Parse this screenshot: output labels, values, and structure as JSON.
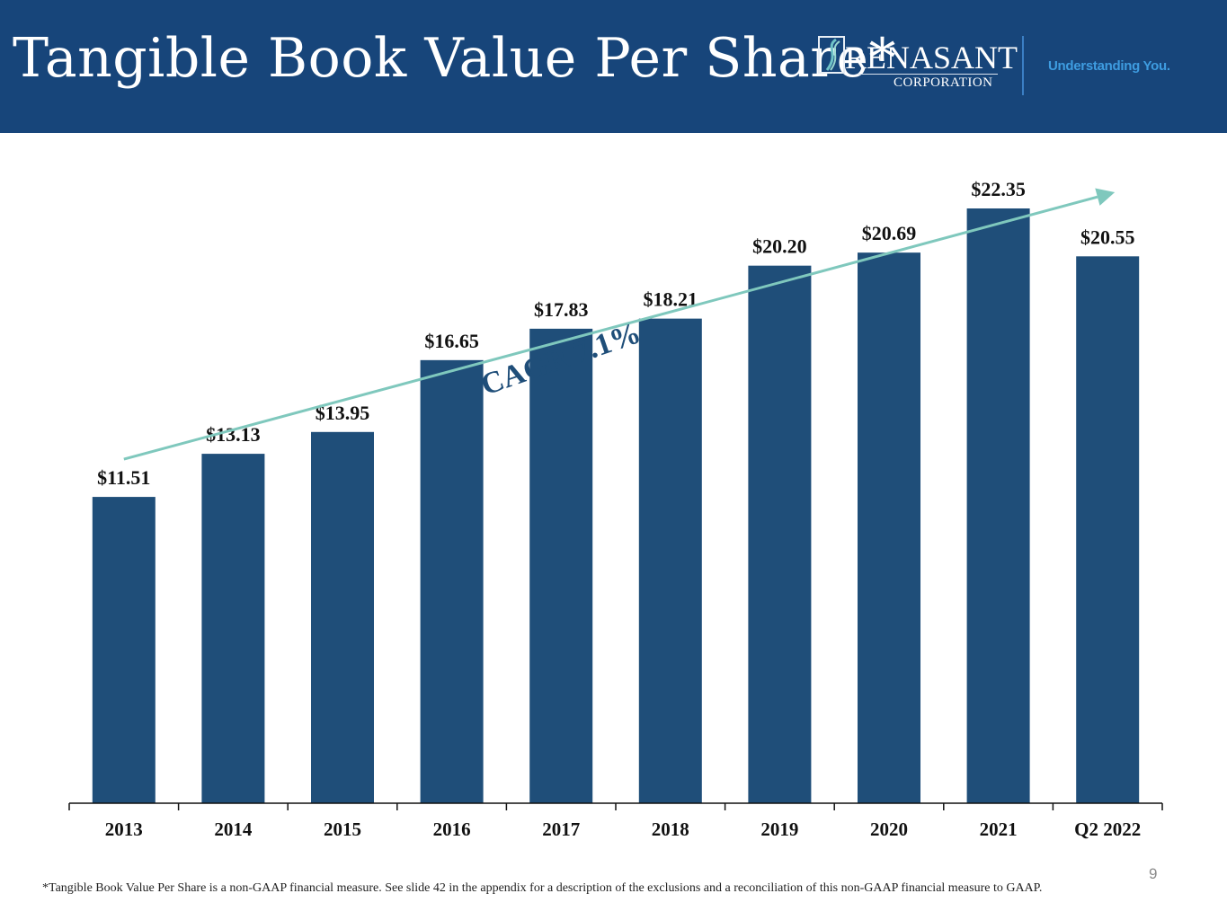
{
  "header": {
    "title": "Tangible Book Value Per Share*",
    "logo_name": "RENASANT",
    "logo_sub": "CORPORATION",
    "tagline": "Understanding You."
  },
  "colors": {
    "header_bg": "#17457a",
    "bar": "#1f4e79",
    "trend": "#7fc8bd",
    "cagr_text": "#1f4e79"
  },
  "chart_data": {
    "type": "bar",
    "title": "Tangible Book Value Per Share*",
    "xlabel": "",
    "ylabel": "",
    "categories": [
      "2013",
      "2014",
      "2015",
      "2016",
      "2017",
      "2018",
      "2019",
      "2020",
      "2021",
      "Q2 2022"
    ],
    "values": [
      11.51,
      13.13,
      13.95,
      16.65,
      17.83,
      18.21,
      20.2,
      20.69,
      22.35,
      20.55
    ],
    "data_labels": [
      "$11.51",
      "$13.13",
      "$13.95",
      "$16.65",
      "$17.83",
      "$18.21",
      "$20.20",
      "$20.69",
      "$22.35",
      "$20.55"
    ],
    "ylim": [
      0,
      22.35
    ],
    "grid": false,
    "legend": "none",
    "annotations": [
      {
        "text": "CAGR 7.1%",
        "type": "trend-arrow",
        "from_category": "2013",
        "to_category": "Q2 2022"
      }
    ]
  },
  "footnote": "*Tangible Book Value Per Share is a non-GAAP financial measure. See slide 42 in the appendix for a description of the exclusions and a reconciliation of this non-GAAP financial measure to GAAP.",
  "page_number": "9"
}
